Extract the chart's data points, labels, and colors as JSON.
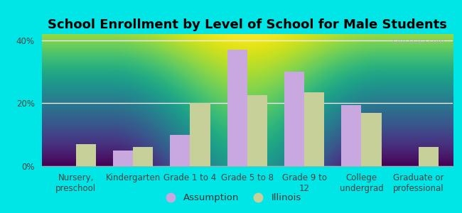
{
  "title": "School Enrollment by Level of School for Male Students",
  "categories": [
    "Nursery,\npreschool",
    "Kindergarten",
    "Grade 1 to 4",
    "Grade 5 to 8",
    "Grade 9 to\n12",
    "College\nundergrad",
    "Graduate or\nprofessional"
  ],
  "assumption_values": [
    0.0,
    5.0,
    10.0,
    37.0,
    30.0,
    19.5,
    0.0
  ],
  "illinois_values": [
    7.0,
    6.0,
    20.0,
    22.5,
    23.5,
    17.0,
    6.0
  ],
  "assumption_color": "#c9a8e0",
  "illinois_color": "#c8d09a",
  "background_outer": "#00e5e5",
  "background_inner_gradient_top": "#f8fff8",
  "background_inner_gradient_bottom": "#d8eed8",
  "ylim": [
    0,
    42
  ],
  "yticks": [
    0,
    20,
    40
  ],
  "ytick_labels": [
    "0%",
    "20%",
    "40%"
  ],
  "bar_width": 0.35,
  "legend_labels": [
    "Assumption",
    "Illinois"
  ],
  "watermark": "City-Data.com",
  "title_fontsize": 13,
  "tick_fontsize": 8.5,
  "legend_fontsize": 9.5
}
